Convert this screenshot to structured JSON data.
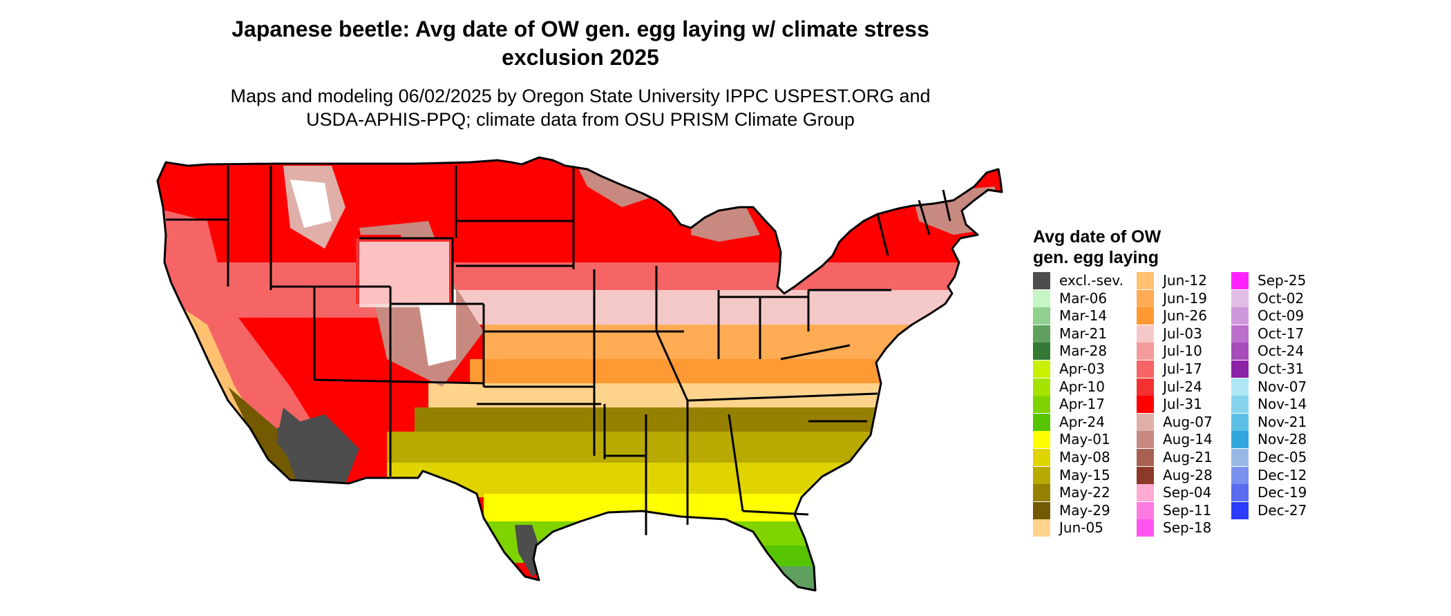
{
  "title_line1": "Japanese beetle: Avg date of OW gen. egg laying w/ climate stress",
  "title_line2": "exclusion 2025",
  "subtitle_line1": "Maps and modeling 06/02/2025 by Oregon State University IPPC USPEST.ORG and",
  "subtitle_line2": "USDA-APHIS-PPQ; climate data from OSU PRISM Climate Group",
  "legend": {
    "title_line1": "Avg date of OW",
    "title_line2": "gen. egg laying",
    "columns": [
      [
        {
          "label": "excl.-sev.",
          "color": "#4d4d4d"
        },
        {
          "label": "Mar-06",
          "color": "#c6f5c6"
        },
        {
          "label": "Mar-14",
          "color": "#8fd08f"
        },
        {
          "label": "Mar-21",
          "color": "#5fa05f"
        },
        {
          "label": "Mar-28",
          "color": "#347a34"
        },
        {
          "label": "Apr-03",
          "color": "#c8f000"
        },
        {
          "label": "Apr-10",
          "color": "#a6e400"
        },
        {
          "label": "Apr-17",
          "color": "#7fd400"
        },
        {
          "label": "Apr-24",
          "color": "#56c400"
        },
        {
          "label": "May-01",
          "color": "#ffff00"
        },
        {
          "label": "May-08",
          "color": "#e0d400"
        },
        {
          "label": "May-15",
          "color": "#b8aa00"
        },
        {
          "label": "May-22",
          "color": "#968000"
        },
        {
          "label": "May-29",
          "color": "#735a00"
        },
        {
          "label": "Jun-05",
          "color": "#ffd38c"
        }
      ],
      [
        {
          "label": "Jun-12",
          "color": "#ffc070"
        },
        {
          "label": "Jun-19",
          "color": "#ffac55"
        },
        {
          "label": "Jun-26",
          "color": "#ff9933"
        },
        {
          "label": "Jul-03",
          "color": "#f5c8c8"
        },
        {
          "label": "Jul-10",
          "color": "#f59a9a"
        },
        {
          "label": "Jul-17",
          "color": "#f56565"
        },
        {
          "label": "Jul-24",
          "color": "#f53030"
        },
        {
          "label": "Jul-31",
          "color": "#ff0000"
        },
        {
          "label": "Aug-07",
          "color": "#e0b0a8"
        },
        {
          "label": "Aug-14",
          "color": "#c88a80"
        },
        {
          "label": "Aug-21",
          "color": "#a86050"
        },
        {
          "label": "Aug-28",
          "color": "#8c3a28"
        },
        {
          "label": "Sep-04",
          "color": "#ffaad4"
        },
        {
          "label": "Sep-11",
          "color": "#ff7ae0"
        },
        {
          "label": "Sep-18",
          "color": "#ff55ee"
        }
      ],
      [
        {
          "label": "Sep-25",
          "color": "#ff22ff"
        },
        {
          "label": "Oct-02",
          "color": "#e0bce6"
        },
        {
          "label": "Oct-09",
          "color": "#d098dc"
        },
        {
          "label": "Oct-17",
          "color": "#bb6fcc"
        },
        {
          "label": "Oct-24",
          "color": "#a64cbb"
        },
        {
          "label": "Oct-31",
          "color": "#8c22a6"
        },
        {
          "label": "Nov-07",
          "color": "#aee6f5"
        },
        {
          "label": "Nov-14",
          "color": "#86d3ef"
        },
        {
          "label": "Nov-21",
          "color": "#5cbfe6"
        },
        {
          "label": "Nov-28",
          "color": "#30a6dc"
        },
        {
          "label": "Dec-05",
          "color": "#9ab8e6"
        },
        {
          "label": "Dec-12",
          "color": "#7a90ee"
        },
        {
          "label": "Dec-19",
          "color": "#5a6cf0"
        },
        {
          "label": "Dec-27",
          "color": "#2a3cff"
        }
      ]
    ]
  },
  "map": {
    "colors": {
      "excluded": "#4d4d4d",
      "no_data": "#ffffff",
      "outline": "#000000"
    }
  }
}
